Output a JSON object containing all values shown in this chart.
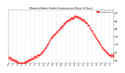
{
  "title": "Milwaukee Weather Outdoor Temperature per Minute (24 Hours)",
  "line_color": "#ff0000",
  "bg_color": "#ffffff",
  "grid_color": "#aaaaaa",
  "legend_label": "Temperature °F",
  "ylim": [
    38,
    72
  ],
  "ytick_values": [
    40,
    45,
    50,
    55,
    60,
    65,
    70
  ],
  "num_points": 1440,
  "curve": [
    42,
    41,
    40,
    39,
    38,
    38,
    39,
    40,
    41,
    42,
    43,
    44,
    46,
    49,
    52,
    55,
    57,
    59,
    61,
    63,
    65,
    66,
    67,
    68,
    67,
    66,
    65,
    63,
    60,
    57,
    54,
    51,
    48,
    46,
    44,
    43
  ],
  "curve_hours": [
    0,
    0.67,
    1.33,
    2,
    2.67,
    3.33,
    4,
    4.67,
    5.33,
    6,
    6.67,
    7.33,
    8,
    8.67,
    9.33,
    10,
    10.67,
    11.33,
    12,
    12.67,
    13.33,
    14,
    14.67,
    15.33,
    16,
    16.67,
    17.33,
    18,
    18.67,
    19.33,
    20,
    20.67,
    21.33,
    22,
    22.67,
    23.33
  ]
}
